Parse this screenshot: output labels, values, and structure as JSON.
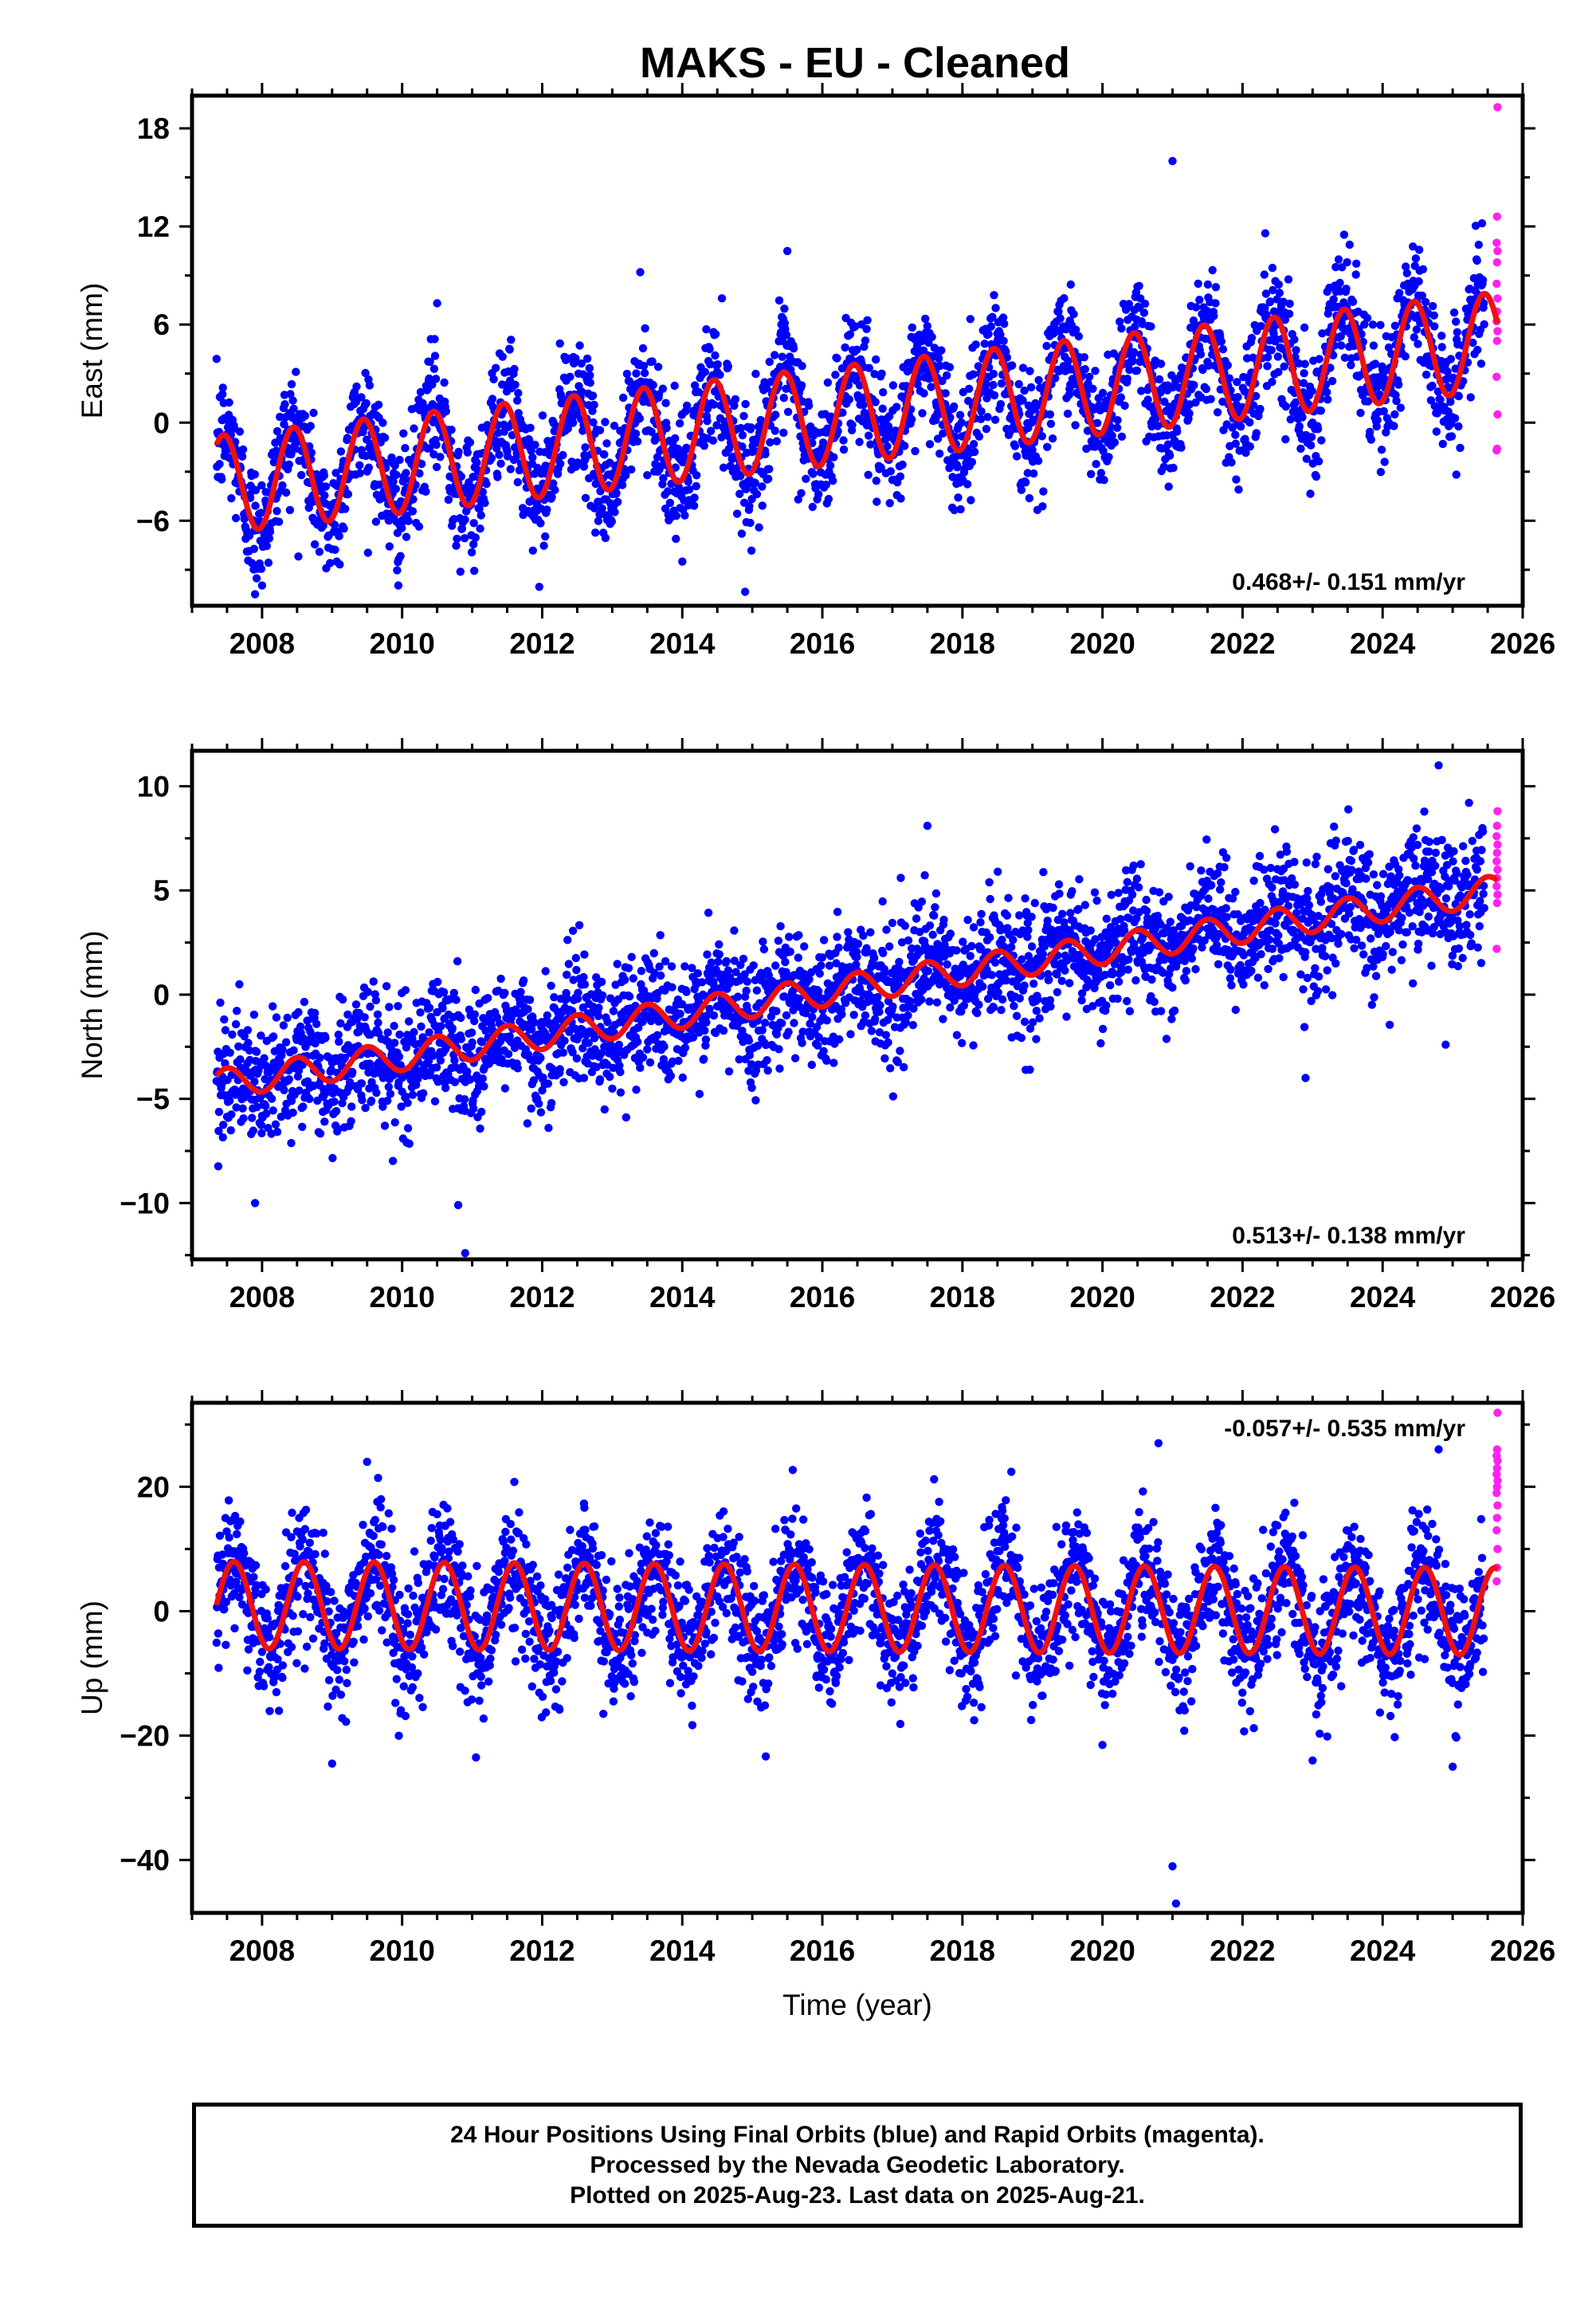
{
  "colors": {
    "final": "#0000ff",
    "rapid": "#ff22ee",
    "model": "#ee1111",
    "frame": "#000000"
  },
  "chart_data": {
    "type": "scatter",
    "title": "MAKS  - EU - Cleaned",
    "xlabel": "Time (year)",
    "xlim": [
      2007.0,
      2026.0
    ],
    "x_ticks": [
      2008,
      2010,
      2012,
      2014,
      2016,
      2018,
      2020,
      2022,
      2024,
      2026
    ],
    "data_span": [
      2007.35,
      2025.64
    ],
    "rapid_span": [
      2025.45,
      2025.64
    ],
    "series_colors": {
      "final_orbits": "blue",
      "rapid_orbits": "magenta",
      "model": "red"
    },
    "panels": [
      {
        "ylabel": "East (mm)",
        "ylim": [
          -11.2,
          20
        ],
        "y_ticks": [
          18,
          12,
          6,
          0,
          -6
        ],
        "rate_text": "0.468+/- 0.151 mm/yr",
        "rate_position": "bottom-right",
        "model": {
          "start_year": 2007.35,
          "start_value": -3.8,
          "trend_mm_per_yr": 0.48,
          "annual_amplitude": 3.0,
          "annual_peak_fraction": 0.45
        },
        "scatter_sigma": 1.9,
        "outliers": [
          [
            2021.0,
            16.0
          ],
          [
            2013.4,
            9.2
          ],
          [
            2015.5,
            10.5
          ],
          [
            2010.5,
            7.3
          ],
          [
            2014.0,
            -8.5
          ],
          [
            2007.9,
            -10.5
          ]
        ],
        "rapid_values": [
          19.3,
          12.6,
          11.0,
          10.5,
          9.8,
          8.5,
          7.6,
          6.8,
          6.2,
          5.6,
          5.0,
          2.8,
          0.5,
          -1.6,
          -1.7
        ]
      },
      {
        "ylabel": "North (mm)",
        "ylim": [
          -12.7,
          11.7
        ],
        "y_ticks": [
          10,
          5,
          0,
          -5,
          -10
        ],
        "rate_text": "0.513+/- 0.138 mm/yr",
        "rate_position": "bottom-right",
        "model": {
          "start_year": 2007.35,
          "start_value": -4.3,
          "trend_mm_per_yr": 0.51,
          "annual_amplitude": 0.7,
          "annual_peak_fraction": 0.5
        },
        "scatter_sigma": 1.5,
        "outliers": [
          [
            2024.8,
            11.0
          ],
          [
            2017.5,
            8.1
          ],
          [
            2010.8,
            -10.1
          ],
          [
            2010.9,
            -12.4
          ],
          [
            2007.9,
            -10.0
          ],
          [
            2022.9,
            -4.0
          ],
          [
            2024.9,
            -2.4
          ]
        ],
        "rapid_values": [
          8.8,
          8.1,
          7.6,
          7.2,
          6.8,
          6.4,
          6.0,
          5.6,
          5.2,
          4.8,
          4.4,
          2.2
        ]
      },
      {
        "ylabel": "Up (mm)",
        "ylim": [
          -48.5,
          33.5
        ],
        "y_ticks": [
          20,
          0,
          -20,
          -40
        ],
        "rate_text": "-0.057+/- 0.535 mm/yr",
        "rate_position": "top-right",
        "model": {
          "start_year": 2007.35,
          "start_value": 1.0,
          "trend_mm_per_yr": -0.057,
          "annual_amplitude": 7.0,
          "annual_peak_fraction": 0.6
        },
        "scatter_sigma": 5.0,
        "outliers": [
          [
            2021.0,
            -41.0
          ],
          [
            2021.05,
            -47.0
          ],
          [
            2009.0,
            -24.5
          ],
          [
            2023.0,
            -24.0
          ],
          [
            2025.0,
            -25.0
          ],
          [
            2020.0,
            -21.5
          ],
          [
            2009.5,
            24.0
          ],
          [
            2024.8,
            26.0
          ],
          [
            2020.8,
            27.0
          ]
        ],
        "rapid_values": [
          31.9,
          26.0,
          25.0,
          24.2,
          23.0,
          22.0,
          21.0,
          20.0,
          19.0,
          17.0,
          15.0,
          13.0,
          10.0,
          7.0,
          4.8
        ]
      }
    ]
  },
  "footer": {
    "line1": "24 Hour Positions Using Final Orbits (blue) and Rapid Orbits (magenta).",
    "line2": "Processed by the Nevada Geodetic Laboratory.",
    "line3": "Plotted on 2025-Aug-23. Last data on 2025-Aug-21."
  }
}
